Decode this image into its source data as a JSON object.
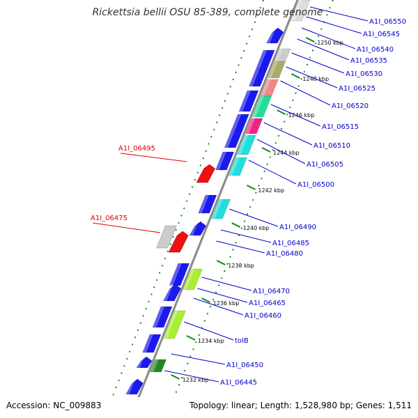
{
  "title": "Rickettsia bellii OSU 85-389, complete genome",
  "accession_text": "Accession: NC_009883",
  "topology_text": "Topology: linear; Length: 1,528,980 bp; Genes: 1,511",
  "colors": {
    "backbone": "#999999",
    "dotted_track": "#118811",
    "forward_gene": "#1a1aee",
    "gene_label": "#0000cc",
    "highlight_label": "#dd0000",
    "highlight_gene": "#ee1111"
  },
  "scale_ticks": [
    "1250 kbp",
    "1248 kbp",
    "1246 kbp",
    "1244 kbp",
    "1242 kbp",
    "1240 kbp",
    "1238 kbp",
    "1236 kbp",
    "1234 kbp",
    "1232 kbp"
  ],
  "right_labels": [
    "A1I_06550",
    "A1I_06545",
    "A1I_06540",
    "A1I_06535",
    "A1I_06530",
    "A1I_06525",
    "A1I_06520",
    "A1I_06515",
    "A1I_06510",
    "A1I_06505",
    "A1I_06500",
    "A1I_06490",
    "A1I_06485",
    "A1I_06480",
    "A1I_06470",
    "A1I_06465",
    "A1I_06460",
    "tolB",
    "A1I_06450",
    "A1I_06445"
  ],
  "left_labels": [
    "A1I_06495",
    "A1I_06475"
  ]
}
